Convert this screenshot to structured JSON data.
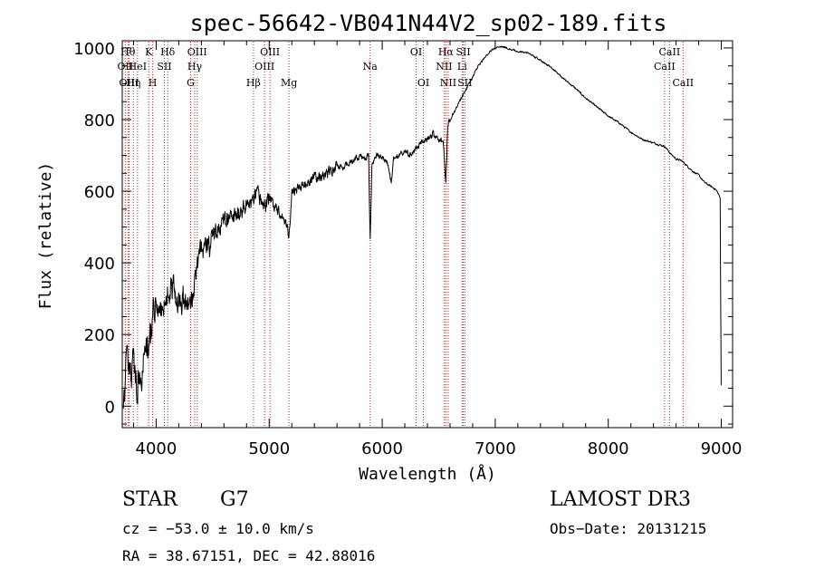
{
  "chart_data": {
    "type": "line",
    "title": "spec-56642-VB041N44V2_sp02-189.fits",
    "xlabel": "Wavelength (Å)",
    "ylabel": "Flux (relative)",
    "xlim": [
      3700,
      9100
    ],
    "ylim": [
      -60,
      1020
    ],
    "xticks": [
      4000,
      5000,
      6000,
      7000,
      8000,
      9000
    ],
    "yticks": [
      0,
      200,
      400,
      600,
      800,
      1000
    ],
    "series": [
      {
        "name": "flux",
        "x": [
          3710,
          3740,
          3770,
          3800,
          3830,
          3850,
          3870,
          3900,
          3930,
          3960,
          4000,
          4050,
          4100,
          4150,
          4200,
          4250,
          4300,
          4340,
          4380,
          4420,
          4470,
          4520,
          4580,
          4650,
          4720,
          4800,
          4861,
          4900,
          4950,
          5000,
          5050,
          5100,
          5150,
          5175,
          5200,
          5250,
          5300,
          5350,
          5400,
          5450,
          5500,
          5550,
          5600,
          5650,
          5700,
          5750,
          5800,
          5850,
          5880,
          5893,
          5910,
          5950,
          6000,
          6050,
          6080,
          6100,
          6150,
          6200,
          6250,
          6300,
          6350,
          6400,
          6450,
          6500,
          6540,
          6563,
          6580,
          6620,
          6650,
          6700,
          6750,
          6800,
          6850,
          6900,
          6950,
          7000,
          7050,
          7100,
          7150,
          7200,
          7300,
          7400,
          7500,
          7600,
          7700,
          7800,
          7900,
          8000,
          8100,
          8200,
          8300,
          8400,
          8500,
          8550,
          8600,
          8650,
          8700,
          8750,
          8800,
          8850,
          8900,
          8950,
          8980,
          8990,
          9000
        ],
        "values": [
          10,
          120,
          60,
          170,
          20,
          110,
          90,
          180,
          150,
          230,
          290,
          270,
          320,
          330,
          290,
          300,
          270,
          340,
          430,
          450,
          450,
          480,
          510,
          520,
          540,
          560,
          570,
          590,
          560,
          580,
          560,
          540,
          510,
          480,
          590,
          610,
          615,
          625,
          640,
          640,
          650,
          655,
          670,
          665,
          680,
          685,
          700,
          690,
          700,
          460,
          680,
          700,
          690,
          680,
          620,
          690,
          700,
          710,
          700,
          720,
          735,
          745,
          760,
          745,
          740,
          620,
          790,
          810,
          830,
          860,
          890,
          920,
          950,
          970,
          990,
          1000,
          1005,
          1000,
          995,
          990,
          985,
          965,
          945,
          915,
          890,
          860,
          835,
          810,
          790,
          765,
          745,
          735,
          725,
          705,
          690,
          685,
          670,
          655,
          645,
          625,
          615,
          605,
          590,
          580,
          0
        ]
      }
    ],
    "lines": [
      {
        "wave": 3727,
        "label": "OII",
        "row": 2
      },
      {
        "wave": 3750,
        "label": "Hθ",
        "row": 1
      },
      {
        "wave": 3760,
        "label": "OIII",
        "row": 3
      },
      {
        "wave": 3798,
        "label": "Hη",
        "row": 3
      },
      {
        "wave": 3835,
        "label": "HeI",
        "row": 2
      },
      {
        "wave": 3934,
        "label": "K",
        "row": 1
      },
      {
        "wave": 3969,
        "label": "H",
        "row": 3
      },
      {
        "wave": 4072,
        "label": "SII",
        "row": 2
      },
      {
        "wave": 4102,
        "label": "Hδ",
        "row": 1
      },
      {
        "wave": 4305,
        "label": "G",
        "row": 3
      },
      {
        "wave": 4341,
        "label": "Hγ",
        "row": 2
      },
      {
        "wave": 4363,
        "label": "OIII",
        "row": 1
      },
      {
        "wave": 4861,
        "label": "Hβ",
        "row": 3
      },
      {
        "wave": 4959,
        "label": "OIII",
        "row": 2
      },
      {
        "wave": 5007,
        "label": "OIII",
        "row": 1
      },
      {
        "wave": 5175,
        "label": "Mg",
        "row": 3
      },
      {
        "wave": 5893,
        "label": "Na",
        "row": 2
      },
      {
        "wave": 6300,
        "label": "OI",
        "row": 1
      },
      {
        "wave": 6364,
        "label": "OI",
        "row": 3
      },
      {
        "wave": 6548,
        "label": "NII",
        "row": 2
      },
      {
        "wave": 6563,
        "label": "Hα",
        "row": 1
      },
      {
        "wave": 6584,
        "label": "NII",
        "row": 3
      },
      {
        "wave": 6707,
        "label": "Li",
        "row": 2
      },
      {
        "wave": 6717,
        "label": "SII",
        "row": 1
      },
      {
        "wave": 6731,
        "label": "SII",
        "row": 3
      },
      {
        "wave": 8498,
        "label": "CaII",
        "row": 2
      },
      {
        "wave": 8542,
        "label": "CaII",
        "row": 1
      },
      {
        "wave": 8662,
        "label": "CaII",
        "row": 3
      }
    ]
  },
  "info": {
    "class": "STAR",
    "subclass": "G7",
    "survey": "LAMOST DR3",
    "cz": "cz = −53.0 ± 10.0 km/s",
    "obs_date": "Obs−Date: 20131215",
    "radec": "RA =  38.67151, DEC =  42.88016"
  },
  "colors": {
    "axes": "#000000",
    "spectrum": "#000000",
    "line_marker": "#cc2222",
    "background": "#ffffff"
  }
}
